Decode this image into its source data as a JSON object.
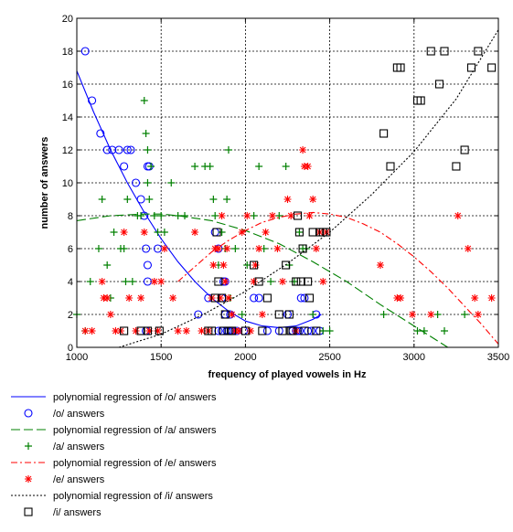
{
  "chart_data": {
    "type": "scatter",
    "title": "",
    "xlabel": "frequency of played vowels in Hz",
    "ylabel": "number of answers",
    "xlim": [
      1000,
      3500
    ],
    "ylim": [
      0,
      20
    ],
    "xticks": [
      1000,
      1500,
      2000,
      2500,
      3000,
      3500
    ],
    "yticks": [
      0,
      2,
      4,
      6,
      8,
      10,
      12,
      14,
      16,
      18,
      20
    ],
    "grid": true,
    "legend_position": "below",
    "series": [
      {
        "name": "polynomial regression of /o/ answers",
        "kind": "line",
        "dash": "solid",
        "color": "#0000ff",
        "x": [
          1000,
          1100,
          1200,
          1300,
          1400,
          1500,
          1600,
          1700,
          1800,
          1900,
          2000,
          2100,
          2200,
          2300,
          2400,
          2450
        ],
        "y": [
          16.8,
          14.3,
          12.0,
          10.0,
          8.2,
          6.6,
          5.2,
          4.0,
          3.0,
          2.2,
          1.6,
          1.3,
          1.2,
          1.3,
          1.7,
          2.0
        ]
      },
      {
        "name": "/o/ answers",
        "kind": "marker",
        "marker": "circle",
        "color": "#0000ff",
        "x": [
          1050,
          1090,
          1140,
          1180,
          1210,
          1250,
          1280,
          1300,
          1320,
          1350,
          1380,
          1400,
          1410,
          1420,
          1420,
          1430,
          1420,
          1410,
          1480,
          1720,
          1780,
          1820,
          1840,
          1860,
          1870,
          1880,
          1890,
          1900,
          1910,
          1920,
          1950,
          1990,
          2050,
          2080,
          2130,
          2200,
          2250,
          2280,
          2300,
          2310,
          2320,
          2330,
          2350,
          2370,
          2390,
          2420,
          2440,
          1840,
          1860,
          1880
        ],
        "y": [
          18,
          15,
          13,
          12,
          12,
          12,
          11,
          12,
          12,
          10,
          9,
          8,
          6,
          5,
          4,
          11,
          11,
          1,
          6,
          2,
          3,
          7,
          6,
          3,
          4,
          2,
          1,
          1,
          2,
          1,
          1,
          1,
          3,
          3,
          1,
          1,
          2,
          1,
          1,
          1,
          1,
          3,
          3,
          1,
          1,
          2,
          1,
          1,
          1,
          4
        ]
      },
      {
        "name": "polynomial regression of /a/ answers",
        "kind": "line",
        "dash": "longdash",
        "color": "#008000",
        "x": [
          1000,
          1200,
          1400,
          1500,
          1600,
          1800,
          2000,
          2200,
          2400,
          2600,
          2800,
          3000,
          3200
        ],
        "y": [
          7.7,
          8.0,
          8.1,
          8.1,
          8.0,
          7.7,
          7.1,
          6.3,
          5.2,
          4.0,
          2.6,
          1.3,
          0.0
        ]
      },
      {
        "name": "/a/ answers",
        "kind": "marker",
        "marker": "plus",
        "color": "#008000",
        "x": [
          1000,
          1050,
          1080,
          1130,
          1150,
          1180,
          1200,
          1220,
          1260,
          1280,
          1290,
          1300,
          1330,
          1360,
          1380,
          1400,
          1410,
          1420,
          1420,
          1430,
          1440,
          1460,
          1480,
          1500,
          1520,
          1560,
          1600,
          1640,
          1700,
          1760,
          1790,
          1810,
          1820,
          1840,
          1860,
          1880,
          1890,
          1900,
          1910,
          1940,
          1980,
          2010,
          2050,
          2080,
          2110,
          2150,
          2200,
          2240,
          2260,
          2290,
          2320,
          2340,
          2360,
          2400,
          2460,
          2500,
          2820,
          3020,
          3060,
          3140,
          3180,
          3300
        ],
        "y": [
          2,
          1,
          4,
          6,
          9,
          5,
          3,
          7,
          6,
          6,
          4,
          9,
          4,
          8,
          8,
          15,
          13,
          12,
          10,
          9,
          11,
          8,
          7,
          8,
          7,
          10,
          8,
          8,
          11,
          11,
          11,
          9,
          8,
          5,
          7,
          6,
          9,
          12,
          3,
          6,
          2,
          5,
          8,
          11,
          6,
          4,
          8,
          11,
          5,
          4,
          7,
          6,
          6,
          2,
          1,
          1,
          2,
          1,
          1,
          2,
          1,
          2
        ]
      },
      {
        "name": "polynomial regression of /e/ answers",
        "kind": "line",
        "dash": "dashdot",
        "color": "#ff0000",
        "x": [
          1600,
          1700,
          1800,
          1900,
          2000,
          2100,
          2200,
          2300,
          2400,
          2500,
          2600,
          2700,
          2800,
          2900,
          3000,
          3100,
          3200,
          3300,
          3400,
          3500
        ],
        "y": [
          4.0,
          4.9,
          5.8,
          6.5,
          7.1,
          7.6,
          7.9,
          8.1,
          8.2,
          8.1,
          7.9,
          7.5,
          7.0,
          6.3,
          5.5,
          4.6,
          3.6,
          2.5,
          1.4,
          0.2
        ]
      },
      {
        "name": "/e/ answers",
        "kind": "marker",
        "marker": "star",
        "color": "#ff0000",
        "x": [
          1050,
          1090,
          1150,
          1160,
          1180,
          1200,
          1230,
          1260,
          1280,
          1310,
          1350,
          1380,
          1400,
          1430,
          1460,
          1480,
          1500,
          1520,
          1570,
          1600,
          1650,
          1700,
          1740,
          1780,
          1800,
          1810,
          1820,
          1840,
          1850,
          1860,
          1870,
          1880,
          1890,
          1900,
          1920,
          1940,
          1960,
          1980,
          2010,
          2030,
          2050,
          2060,
          2080,
          2100,
          2120,
          2160,
          2190,
          2220,
          2250,
          2270,
          2300,
          2340,
          2350,
          2370,
          2380,
          2400,
          2420,
          2440,
          2460,
          2480,
          2800,
          2900,
          2920,
          2990,
          3100,
          3260,
          3320,
          3360,
          3380,
          3460
        ],
        "y": [
          1,
          1,
          4,
          3,
          3,
          2,
          1,
          1,
          7,
          3,
          1,
          3,
          7,
          1,
          4,
          1,
          4,
          6,
          3,
          1,
          1,
          7,
          1,
          1,
          3,
          5,
          6,
          6,
          3,
          8,
          5,
          4,
          6,
          3,
          2,
          1,
          1,
          7,
          8,
          1,
          4,
          5,
          6,
          2,
          7,
          8,
          6,
          4,
          9,
          8,
          1,
          12,
          11,
          11,
          8,
          9,
          6,
          7,
          4,
          7,
          5,
          3,
          3,
          2,
          2,
          8,
          6,
          3,
          2,
          3
        ]
      },
      {
        "name": "polynomial regression of /i/ answers",
        "kind": "line",
        "dash": "dotted",
        "color": "#000000",
        "x": [
          1250,
          1500,
          1750,
          2000,
          2250,
          2500,
          2750,
          3000,
          3250,
          3500
        ],
        "y": [
          0.0,
          0.8,
          2.0,
          3.4,
          5.1,
          7.0,
          9.3,
          11.9,
          15.1,
          19.3
        ]
      },
      {
        "name": "/i/ answers",
        "kind": "marker",
        "marker": "square",
        "color": "#000000",
        "x": [
          1280,
          1380,
          1420,
          1490,
          1780,
          1800,
          1820,
          1830,
          1840,
          1860,
          1870,
          1880,
          1900,
          1920,
          2000,
          2050,
          2080,
          2100,
          2130,
          2200,
          2220,
          2240,
          2260,
          2270,
          2280,
          2300,
          2310,
          2320,
          2330,
          2340,
          2350,
          2370,
          2380,
          2400,
          2420,
          2440,
          2460,
          2480,
          2820,
          2860,
          2900,
          2920,
          3020,
          3040,
          3100,
          3150,
          3180,
          3250,
          3300,
          3340,
          3380,
          3460
        ],
        "y": [
          1,
          1,
          1,
          1,
          1,
          1,
          3,
          7,
          4,
          3,
          1,
          2,
          1,
          1,
          1,
          5,
          4,
          1,
          3,
          2,
          1,
          5,
          2,
          1,
          1,
          4,
          8,
          7,
          4,
          6,
          1,
          4,
          3,
          7,
          1,
          7,
          7,
          7,
          13,
          11,
          17,
          17,
          15,
          15,
          18,
          16,
          18,
          11,
          12,
          17,
          18,
          17
        ]
      }
    ]
  }
}
